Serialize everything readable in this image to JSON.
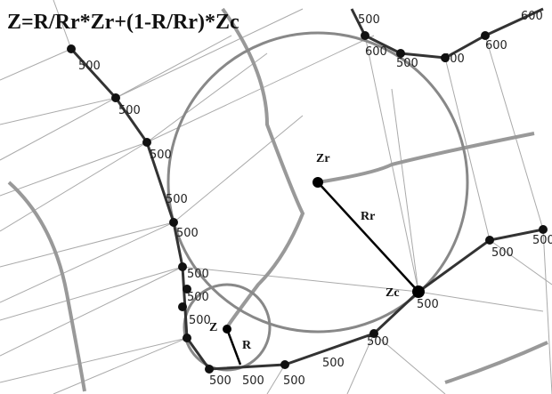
{
  "formula": "Z=R/Rr*Zr+(1-R/Rr)*Zc",
  "points": {
    "zr": "Zr",
    "zc": "Zc",
    "z": "Z"
  },
  "radii": {
    "rr": "Rr",
    "r": "R"
  },
  "curve_labels": [
    "500",
    "500",
    "500",
    "500",
    "500",
    "500",
    "500",
    "500",
    "500",
    "500",
    "500",
    "500",
    "500",
    "500",
    "500",
    "500",
    "500",
    "600",
    "500",
    "500",
    "600",
    "600"
  ]
}
